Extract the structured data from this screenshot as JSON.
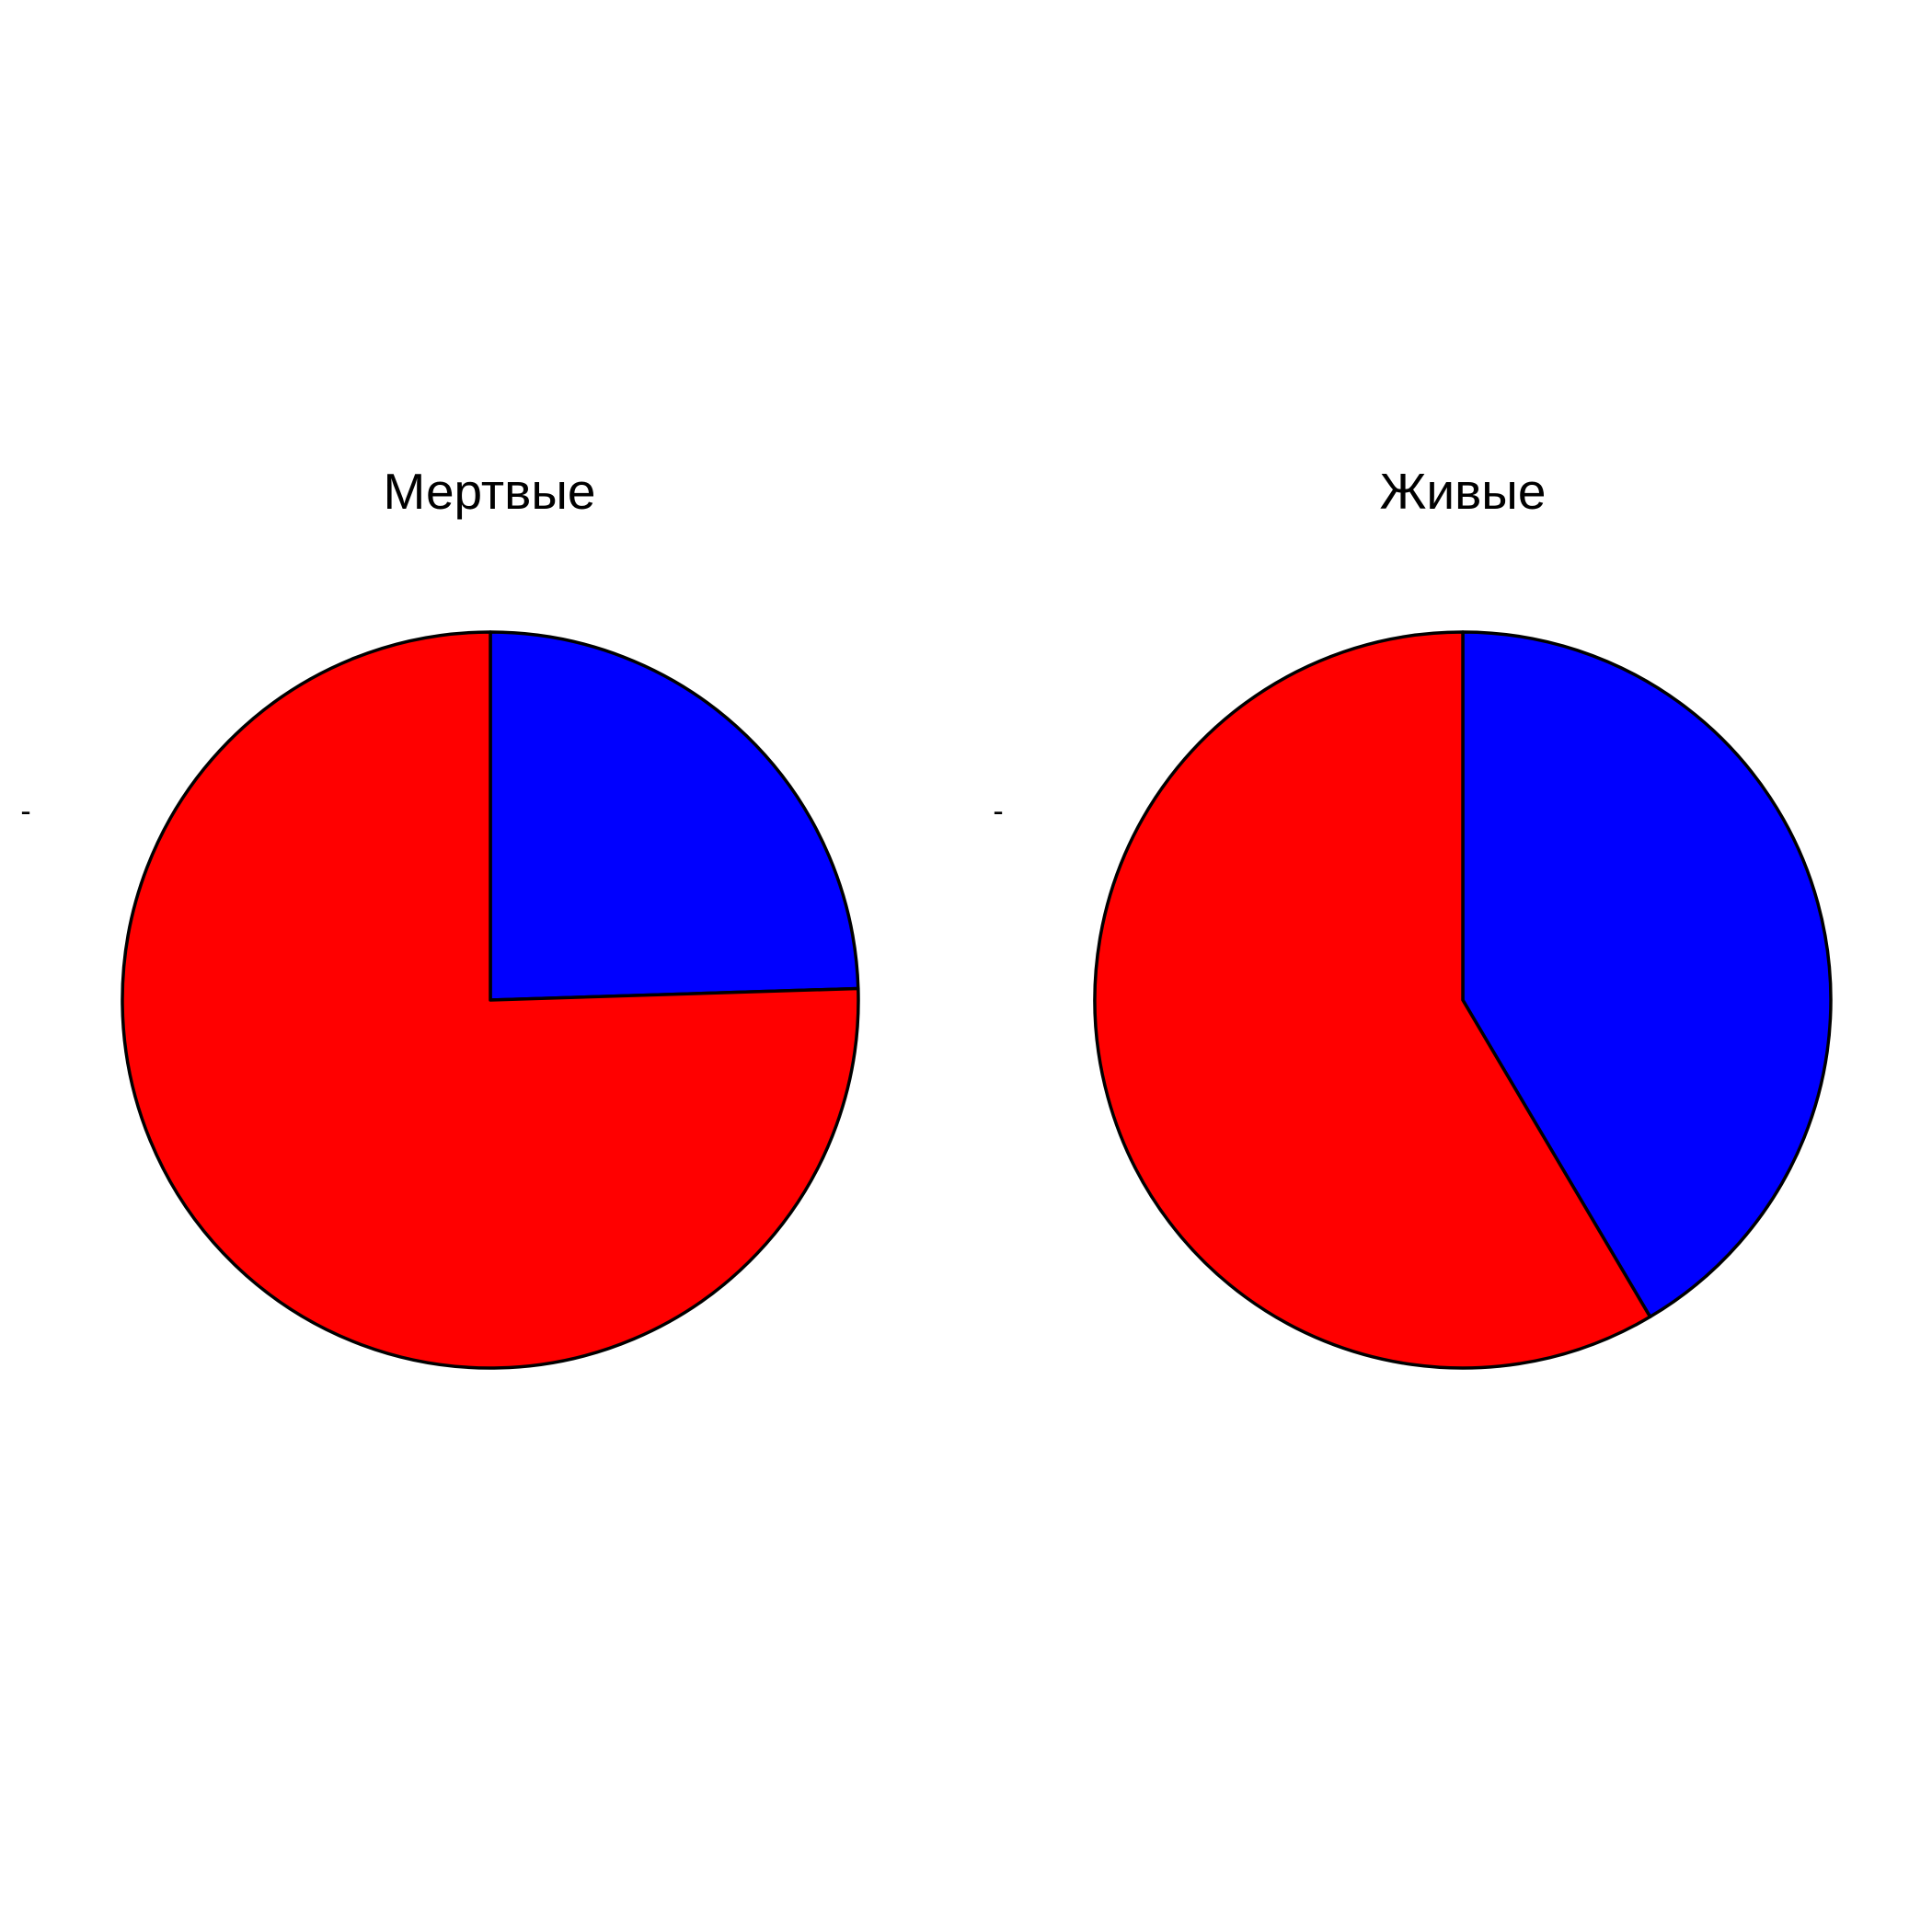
{
  "chart_data": [
    {
      "type": "pie",
      "title": "Мертвые",
      "side_label": "-",
      "start_angle_deg": 90,
      "direction": "clockwise",
      "slices": [
        {
          "value": 0.245,
          "color": "#0000FF"
        },
        {
          "value": 0.755,
          "color": "#FF0000"
        }
      ]
    },
    {
      "type": "pie",
      "title": "Живые",
      "side_label": "-",
      "start_angle_deg": 90,
      "direction": "clockwise",
      "slices": [
        {
          "value": 0.415,
          "color": "#0000FF"
        },
        {
          "value": 0.585,
          "color": "#FF0000"
        }
      ]
    }
  ]
}
